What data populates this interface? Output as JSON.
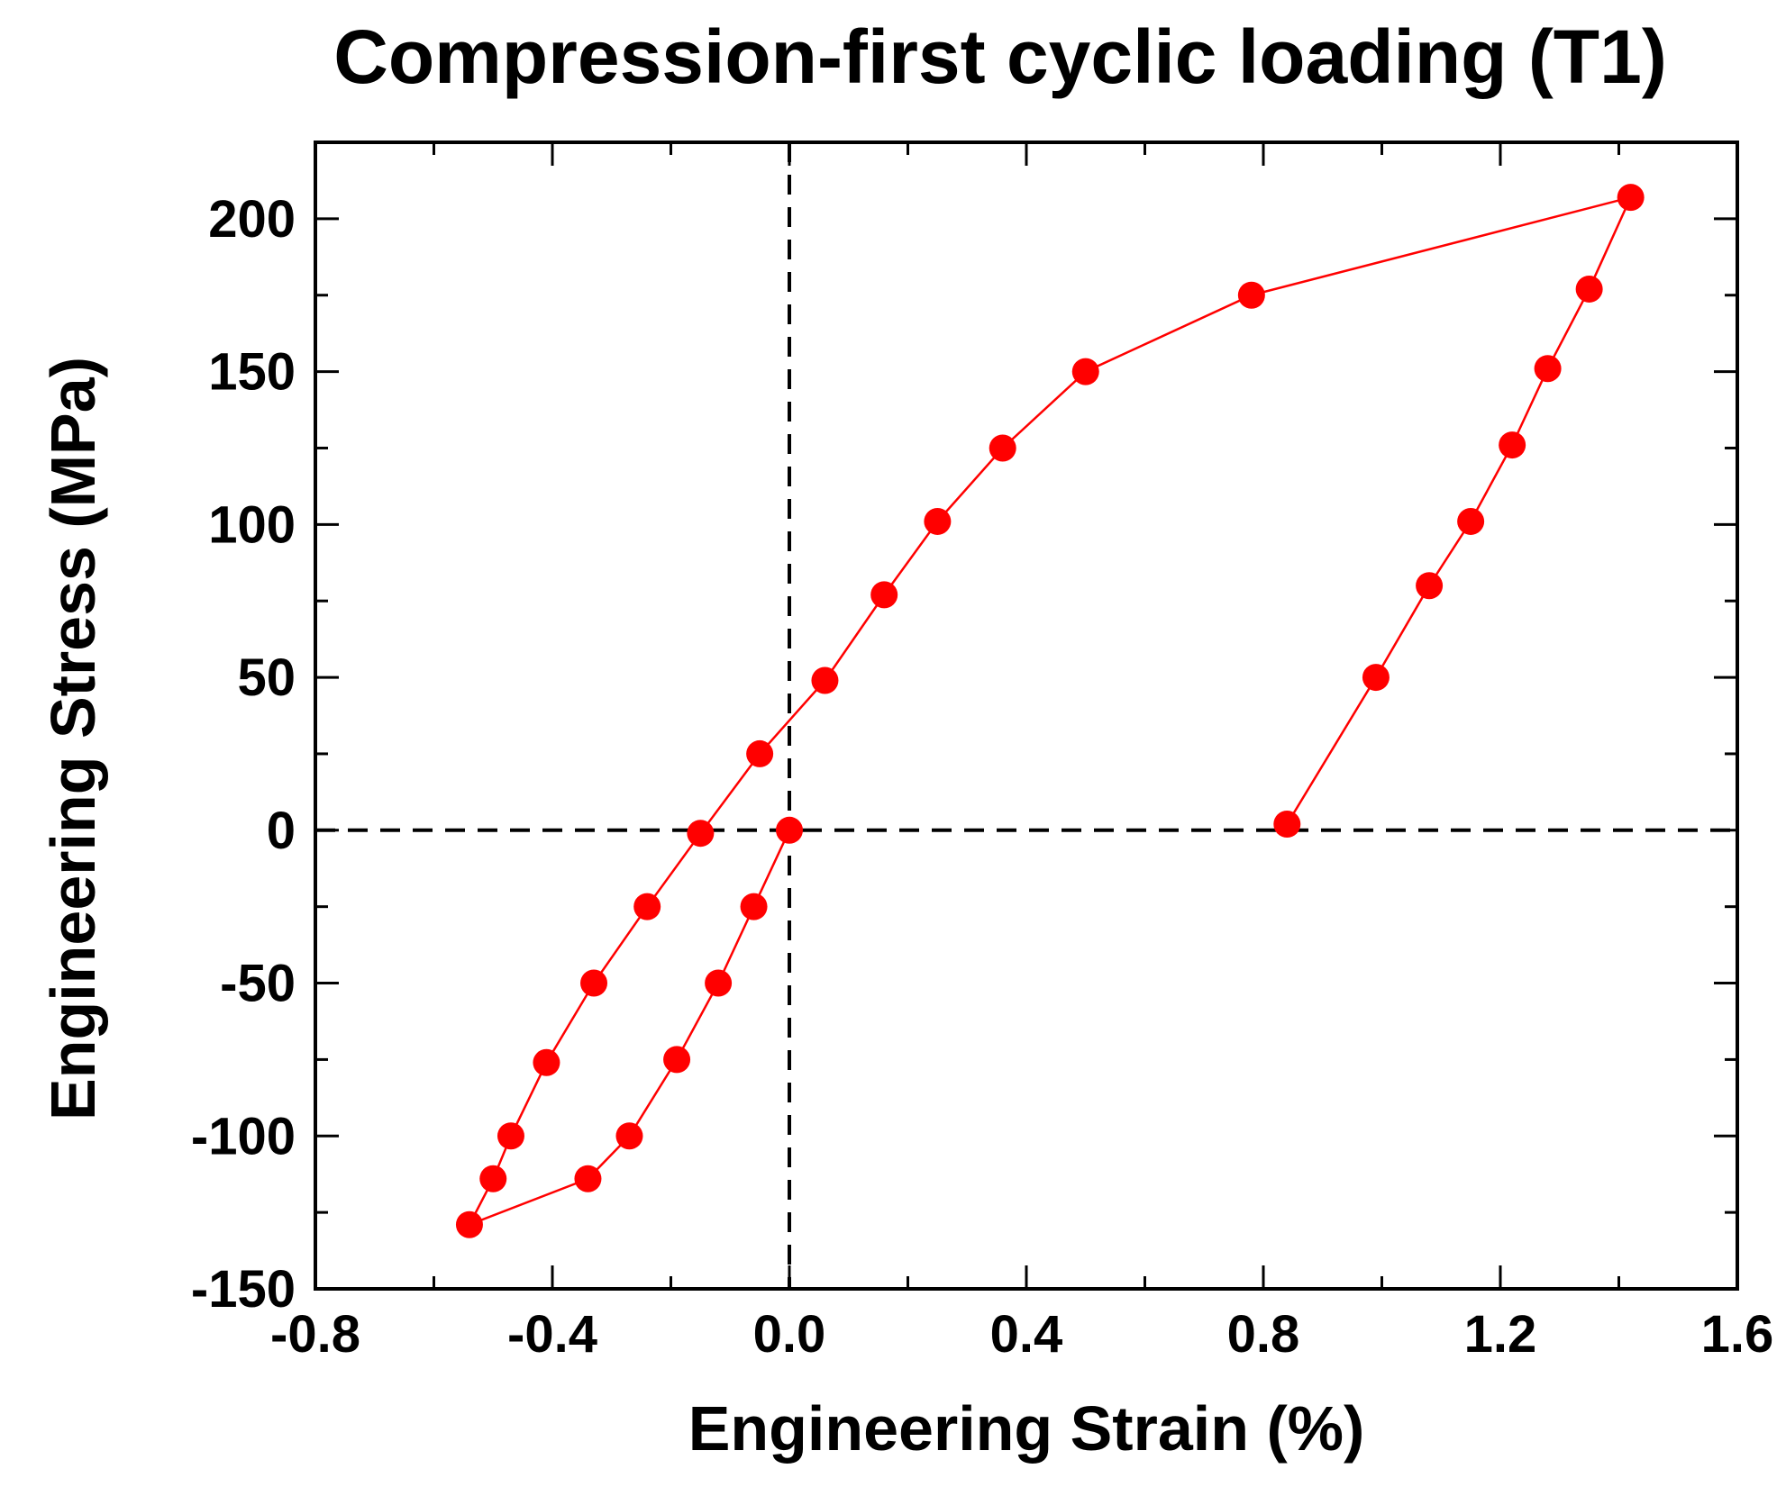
{
  "chart_data": {
    "type": "line",
    "title": "Compression-first cyclic loading (T1)",
    "xlabel": "Engineering Strain (%)",
    "ylabel": "Engineering Stress (MPa)",
    "xlim": [
      -0.8,
      1.6
    ],
    "ylim": [
      -150,
      225
    ],
    "xticks": [
      "-0.8",
      "-0.4",
      "0.0",
      "0.4",
      "0.8",
      "1.2",
      "1.6"
    ],
    "yticks": [
      "-150",
      "-100",
      "-50",
      "0",
      "50",
      "100",
      "150",
      "200"
    ],
    "reference_lines": {
      "x": 0,
      "y": 0,
      "style": "dashed"
    },
    "grid": false,
    "series": [
      {
        "name": "T1",
        "color": "#ff0000",
        "marker": "circle",
        "x": [
          0.0,
          -0.06,
          -0.12,
          -0.19,
          -0.27,
          -0.34,
          -0.54,
          -0.5,
          -0.47,
          -0.41,
          -0.33,
          -0.24,
          -0.15,
          -0.05,
          0.06,
          0.16,
          0.25,
          0.36,
          0.5,
          0.78,
          1.42,
          1.35,
          1.28,
          1.22,
          1.15,
          1.08,
          0.99,
          0.84
        ],
        "y": [
          0,
          -25,
          -50,
          -75,
          -100,
          -114,
          -129,
          -114,
          -100,
          -76,
          -50,
          -25,
          -1,
          25,
          49,
          77,
          101,
          125,
          150,
          175,
          207,
          177,
          151,
          126,
          101,
          80,
          50,
          2
        ]
      }
    ]
  }
}
